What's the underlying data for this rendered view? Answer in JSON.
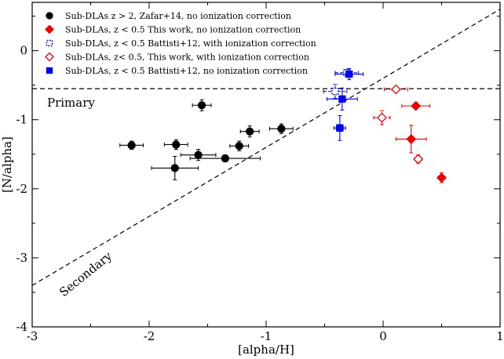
{
  "chart_data": {
    "type": "scatter",
    "title": "",
    "xlabel": "[alpha/H]",
    "ylabel": "[N/alpha]",
    "xlim": [
      -3,
      1
    ],
    "ylim": [
      -4,
      0.7
    ],
    "xticks": [
      -3,
      -2,
      -1,
      0,
      1
    ],
    "xtick_labels": [
      "-3",
      "-2",
      "-1",
      "0",
      "1"
    ],
    "yticks": [
      -4,
      -3,
      -2,
      -1,
      0
    ],
    "ytick_labels": [
      "-4",
      "-3",
      "-2",
      "-1",
      "0"
    ],
    "grid": false,
    "legend_position": "top-left",
    "series": [
      {
        "name": "Sub-DLAs z > 2, Zafar+14, no ionization correction",
        "marker": "circle",
        "filled": true,
        "color": "#000000",
        "dashed_errors": false,
        "points": [
          {
            "x": -2.15,
            "y": -1.37,
            "xerr": 0.1,
            "yerr": 0.06
          },
          {
            "x": -1.77,
            "y": -1.36,
            "xerr": 0.1,
            "yerr": 0.07
          },
          {
            "x": -1.55,
            "y": -0.79,
            "xerr": 0.08,
            "yerr": 0.08
          },
          {
            "x": -1.78,
            "y": -1.7,
            "xerr": 0.2,
            "yerr": 0.17
          },
          {
            "x": -1.58,
            "y": -1.51,
            "xerr": 0.15,
            "yerr": 0.08
          },
          {
            "x": -1.35,
            "y": -1.56,
            "xerr": 0.3,
            "yerr": 0.05
          },
          {
            "x": -1.23,
            "y": -1.38,
            "xerr": 0.08,
            "yerr": 0.07
          },
          {
            "x": -1.14,
            "y": -1.17,
            "xerr": 0.08,
            "yerr": 0.08
          },
          {
            "x": -0.87,
            "y": -1.13,
            "xerr": 0.1,
            "yerr": 0.07
          }
        ]
      },
      {
        "name": "Sub-DLAs, z < 0.5 This work, no ionization correction",
        "marker": "diamond",
        "filled": true,
        "color": "#ee0000",
        "dashed_errors": false,
        "points": [
          {
            "x": 0.28,
            "y": -0.8,
            "xerr": 0.12,
            "yerr": 0.03
          },
          {
            "x": 0.24,
            "y": -1.28,
            "xerr": 0.13,
            "yerr": 0.2
          },
          {
            "x": 0.5,
            "y": -1.84,
            "xerr": 0.03,
            "yerr": 0.07
          }
        ]
      },
      {
        "name": "Sub-DLAs, z < 0.5 Battisti+12, with ionization correction",
        "marker": "square",
        "filled": false,
        "color": "#0000cc",
        "dashed_errors": true,
        "points": [
          {
            "x": -0.31,
            "y": -0.32,
            "xerr": 0.1,
            "yerr": 0.05
          },
          {
            "x": -0.41,
            "y": -0.59,
            "xerr": 0.1,
            "yerr": 0.1
          },
          {
            "x": -0.37,
            "y": -1.12,
            "xerr": 0.05,
            "yerr": 0.05
          }
        ]
      },
      {
        "name": "Sub-DLAs, z< 0.5, This work, with ionization correction",
        "marker": "diamond",
        "filled": false,
        "color": "#ee0000",
        "dashed_errors": true,
        "points": [
          {
            "x": 0.11,
            "y": -0.56,
            "xerr": 0.1,
            "yerr": 0.03
          },
          {
            "x": -0.01,
            "y": -0.97,
            "xerr": 0.07,
            "yerr": 0.1
          },
          {
            "x": 0.3,
            "y": -1.57,
            "xerr": 0.03,
            "yerr": 0.06
          }
        ]
      },
      {
        "name": "Sub-DLAs, z < 0.5 Battisti+12, no ionization correction",
        "marker": "square",
        "filled": true,
        "color": "#0000ee",
        "dashed_errors": false,
        "points": [
          {
            "x": -0.29,
            "y": -0.34,
            "xerr": 0.12,
            "yerr": 0.08
          },
          {
            "x": -0.35,
            "y": -0.7,
            "xerr": 0.13,
            "yerr": 0.16
          },
          {
            "x": -0.37,
            "y": -1.12,
            "xerr": 0.03,
            "yerr": 0.18
          }
        ]
      }
    ],
    "reference_lines": [
      {
        "name": "Primary",
        "x1": -3,
        "y1": -0.55,
        "x2": 1,
        "y2": -0.55,
        "style": "dashed",
        "color": "#000000"
      },
      {
        "name": "Secondary",
        "x1": -3,
        "y1": -3.4,
        "x2": 1,
        "y2": 0.6,
        "style": "dashed",
        "color": "#000000"
      }
    ],
    "annotations": [
      "Primary",
      "Secondary"
    ]
  }
}
